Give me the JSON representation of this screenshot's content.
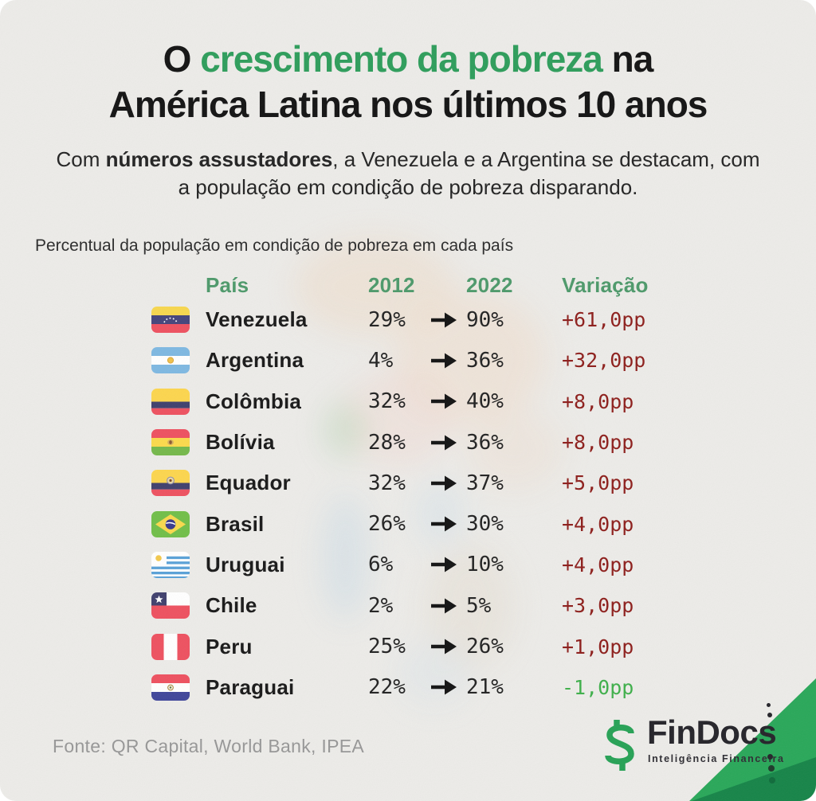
{
  "header": {
    "title_prefix": "O ",
    "title_highlight": "crescimento da pobreza",
    "title_suffix": " na",
    "title_line2": "América Latina nos últimos 10 anos",
    "subtitle_prefix": "Com ",
    "subtitle_bold": "números assustadores",
    "subtitle_rest": ", a Venezuela e a Argentina se destacam, com a população em condição de pobreza disparando."
  },
  "caption": "Percentual da população em condição de pobreza em cada país",
  "table": {
    "headers": {
      "country": "País",
      "y2012": "2012",
      "y2022": "2022",
      "variation": "Variação"
    },
    "rows": [
      {
        "flag": "venezuela",
        "country": "Venezuela",
        "v2012": "29%",
        "v2022": "90%",
        "variation": "+61,0pp",
        "trend": "up"
      },
      {
        "flag": "argentina",
        "country": "Argentina",
        "v2012": "4%",
        "v2022": "36%",
        "variation": "+32,0pp",
        "trend": "up"
      },
      {
        "flag": "colombia",
        "country": "Colômbia",
        "v2012": "32%",
        "v2022": "40%",
        "variation": "+8,0pp",
        "trend": "up"
      },
      {
        "flag": "bolivia",
        "country": "Bolívia",
        "v2012": "28%",
        "v2022": "36%",
        "variation": "+8,0pp",
        "trend": "up"
      },
      {
        "flag": "ecuador",
        "country": "Equador",
        "v2012": "32%",
        "v2022": "37%",
        "variation": "+5,0pp",
        "trend": "up"
      },
      {
        "flag": "brazil",
        "country": "Brasil",
        "v2012": "26%",
        "v2022": "30%",
        "variation": "+4,0pp",
        "trend": "up"
      },
      {
        "flag": "uruguay",
        "country": "Uruguai",
        "v2012": "6%",
        "v2022": "10%",
        "variation": "+4,0pp",
        "trend": "up"
      },
      {
        "flag": "chile",
        "country": "Chile",
        "v2012": "2%",
        "v2022": "5%",
        "variation": "+3,0pp",
        "trend": "up"
      },
      {
        "flag": "peru",
        "country": "Peru",
        "v2012": "25%",
        "v2022": "26%",
        "variation": "+1,0pp",
        "trend": "up"
      },
      {
        "flag": "paraguay",
        "country": "Paraguai",
        "v2012": "22%",
        "v2022": "21%",
        "variation": "-1,0pp",
        "trend": "down"
      }
    ]
  },
  "footer": {
    "source": "Fonte: QR Capital, World Bank, IPEA",
    "logo_text": "FinDocs",
    "logo_tagline": "Inteligência Financeira",
    "dollar_symbol": "$"
  },
  "colors": {
    "background": "#edece9",
    "accent_green": "#2f9e5c",
    "table_header_green": "#4e9a6b",
    "variation_up_red": "#8e1f1c",
    "variation_down_green": "#3fb04b",
    "ribbon_green": "#2aa85a",
    "ribbon_dark_green": "#178549",
    "source_gray": "#979797"
  },
  "chart_data": {
    "type": "table",
    "title": "O crescimento da pobreza na América Latina nos últimos 10 anos",
    "subtitle": "Com números assustadores, a Venezuela e a Argentina se destacam, com a população em condição de pobreza disparando.",
    "note": "Percentual da população em condição de pobreza em cada país",
    "columns": [
      "País",
      "2012",
      "2022",
      "Variação"
    ],
    "countries": [
      "Venezuela",
      "Argentina",
      "Colômbia",
      "Bolívia",
      "Equador",
      "Brasil",
      "Uruguai",
      "Chile",
      "Peru",
      "Paraguai"
    ],
    "values_2012_pct": [
      29,
      4,
      32,
      28,
      32,
      26,
      6,
      2,
      25,
      22
    ],
    "values_2022_pct": [
      90,
      36,
      40,
      36,
      37,
      30,
      10,
      5,
      26,
      21
    ],
    "variation_pp": [
      61,
      32,
      8,
      8,
      5,
      4,
      4,
      3,
      1,
      -1
    ],
    "source": "Fonte: QR Capital, World Bank, IPEA"
  }
}
